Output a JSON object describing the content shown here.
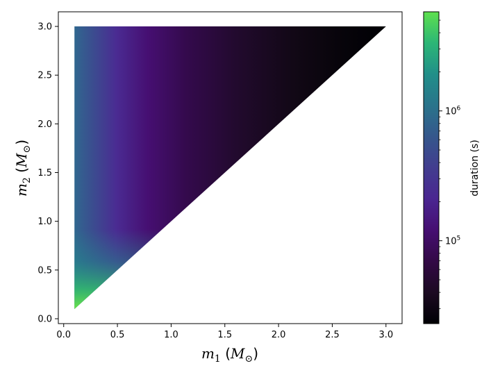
{
  "chart_data": {
    "type": "heatmap",
    "title": "",
    "xlabel": "m1 (M⊙)",
    "ylabel": "m2 (M⊙)",
    "xlabel_parts": {
      "sym": "m",
      "sub": "1",
      "unit_open": " (",
      "unit_sym": "M",
      "unit_sub": "⊙",
      "unit_close": ")"
    },
    "ylabel_parts": {
      "sym": "m",
      "sub": "2",
      "unit_open": " (",
      "unit_sym": "M",
      "unit_sub": "⊙",
      "unit_close": ")"
    },
    "xlim": [
      -0.05,
      3.15
    ],
    "ylim": [
      -0.05,
      3.15
    ],
    "x_ticks": [
      0.0,
      0.5,
      1.0,
      1.5,
      2.0,
      2.5,
      3.0
    ],
    "x_tick_labels": [
      "0.0",
      "0.5",
      "1.0",
      "1.5",
      "2.0",
      "2.5",
      "3.0"
    ],
    "y_ticks": [
      0.0,
      0.5,
      1.0,
      1.5,
      2.0,
      2.5,
      3.0
    ],
    "y_tick_labels": [
      "0.0",
      "0.5",
      "1.0",
      "1.5",
      "2.0",
      "2.5",
      "3.0"
    ],
    "region": {
      "description": "filled for m1 from 0.1 to 3.0 and m2 from m1 to 3.0",
      "m_min": 0.1,
      "m_max": 3.0
    },
    "colormap": "viridis",
    "colorbar": {
      "label": "duration (s)",
      "scale": "log",
      "range": [
        23000,
        5800000
      ],
      "ticks": [
        {
          "value": 100000,
          "base": "10",
          "exp": "5"
        },
        {
          "value": 1000000,
          "base": "10",
          "exp": "6"
        }
      ]
    },
    "grid": false
  }
}
